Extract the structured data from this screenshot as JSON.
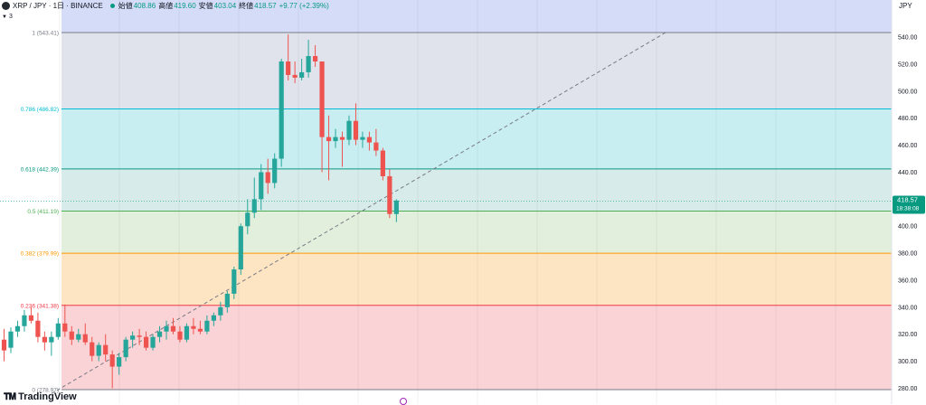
{
  "header": {
    "symbol": "XRP / JPY · 1日 · BINANCE",
    "open_label": "始値",
    "open": "408.86",
    "high_label": "高値",
    "high": "419.60",
    "low_label": "安値",
    "low": "403.04",
    "close_label": "終値",
    "close": "418.57",
    "change": "+9.77 (+2.39%)"
  },
  "indicator_toggle": {
    "count": "3"
  },
  "price_scale": {
    "currency": "JPY"
  },
  "last_price": {
    "price": "418.57",
    "countdown": "18:38:08"
  },
  "logo_text": "TradingView",
  "colors": {
    "up": "#26a69a",
    "down": "#ef5350",
    "label_bg": "#089981"
  },
  "chart_data": {
    "type": "candlestick",
    "y_axis": {
      "ticks": [
        280,
        300,
        320,
        340,
        360,
        380,
        400,
        420,
        440,
        460,
        480,
        500,
        520,
        540
      ],
      "range": [
        276,
        560
      ]
    },
    "fibonacci": [
      {
        "label": "1 (543.41)",
        "level": 1,
        "price": 543.41,
        "line": "#787b86",
        "fill": "#e0e3eb"
      },
      {
        "label": "0.786 (486.82)",
        "level": 0.786,
        "price": 486.82,
        "line": "#00bcd4",
        "fill": "#c8eef2"
      },
      {
        "label": "0.618 (442.39)",
        "level": 0.618,
        "price": 442.39,
        "line": "#089981",
        "fill": "#d7ebea"
      },
      {
        "label": "0.5 (411.19)",
        "level": 0.5,
        "price": 411.19,
        "line": "#4caf50",
        "fill": "#e1efdc"
      },
      {
        "label": "0.382 (379.99)",
        "level": 0.382,
        "price": 379.99,
        "line": "#ff9800",
        "fill": "#fde4c3"
      },
      {
        "label": "0.236 (341.38)",
        "level": 0.236,
        "price": 341.38,
        "line": "#f23645",
        "fill": "#f9d3d6"
      },
      {
        "label": "0 (278.97)",
        "level": 0,
        "price": 278.97,
        "line": "#787b86",
        "fill": null
      }
    ],
    "top_zone_fill": "#d4dcf8",
    "trend_line": {
      "from_bar": 7,
      "from_price": 276,
      "to_bar": 98,
      "to_price": 544
    },
    "candles": [
      {
        "o": 316,
        "h": 324,
        "l": 300,
        "c": 308
      },
      {
        "o": 310,
        "h": 325,
        "l": 306,
        "c": 322
      },
      {
        "o": 322,
        "h": 330,
        "l": 318,
        "c": 326
      },
      {
        "o": 326,
        "h": 338,
        "l": 322,
        "c": 334
      },
      {
        "o": 334,
        "h": 340,
        "l": 328,
        "c": 330
      },
      {
        "o": 330,
        "h": 336,
        "l": 314,
        "c": 318
      },
      {
        "o": 318,
        "h": 322,
        "l": 308,
        "c": 314
      },
      {
        "o": 314,
        "h": 322,
        "l": 304,
        "c": 318
      },
      {
        "o": 318,
        "h": 332,
        "l": 316,
        "c": 328
      },
      {
        "o": 328,
        "h": 342,
        "l": 318,
        "c": 322
      },
      {
        "o": 322,
        "h": 326,
        "l": 312,
        "c": 316
      },
      {
        "o": 316,
        "h": 324,
        "l": 314,
        "c": 320
      },
      {
        "o": 320,
        "h": 328,
        "l": 312,
        "c": 314
      },
      {
        "o": 314,
        "h": 318,
        "l": 300,
        "c": 304
      },
      {
        "o": 304,
        "h": 314,
        "l": 300,
        "c": 312
      },
      {
        "o": 312,
        "h": 320,
        "l": 300,
        "c": 305
      },
      {
        "o": 305,
        "h": 308,
        "l": 280,
        "c": 296
      },
      {
        "o": 296,
        "h": 306,
        "l": 290,
        "c": 303
      },
      {
        "o": 303,
        "h": 318,
        "l": 300,
        "c": 316
      },
      {
        "o": 316,
        "h": 322,
        "l": 310,
        "c": 319
      },
      {
        "o": 319,
        "h": 324,
        "l": 312,
        "c": 318
      },
      {
        "o": 318,
        "h": 322,
        "l": 308,
        "c": 310
      },
      {
        "o": 310,
        "h": 320,
        "l": 308,
        "c": 318
      },
      {
        "o": 318,
        "h": 326,
        "l": 314,
        "c": 322
      },
      {
        "o": 322,
        "h": 330,
        "l": 316,
        "c": 326
      },
      {
        "o": 326,
        "h": 332,
        "l": 320,
        "c": 322
      },
      {
        "o": 322,
        "h": 326,
        "l": 314,
        "c": 316
      },
      {
        "o": 316,
        "h": 328,
        "l": 314,
        "c": 326
      },
      {
        "o": 326,
        "h": 332,
        "l": 320,
        "c": 324
      },
      {
        "o": 324,
        "h": 330,
        "l": 320,
        "c": 322
      },
      {
        "o": 322,
        "h": 334,
        "l": 320,
        "c": 330
      },
      {
        "o": 330,
        "h": 336,
        "l": 326,
        "c": 334
      },
      {
        "o": 334,
        "h": 344,
        "l": 330,
        "c": 340
      },
      {
        "o": 340,
        "h": 352,
        "l": 336,
        "c": 350
      },
      {
        "o": 350,
        "h": 370,
        "l": 346,
        "c": 368
      },
      {
        "o": 368,
        "h": 402,
        "l": 364,
        "c": 400
      },
      {
        "o": 400,
        "h": 420,
        "l": 394,
        "c": 410
      },
      {
        "o": 410,
        "h": 436,
        "l": 406,
        "c": 420
      },
      {
        "o": 420,
        "h": 446,
        "l": 412,
        "c": 440
      },
      {
        "o": 440,
        "h": 450,
        "l": 424,
        "c": 432
      },
      {
        "o": 432,
        "h": 454,
        "l": 428,
        "c": 450
      },
      {
        "o": 450,
        "h": 524,
        "l": 444,
        "c": 522
      },
      {
        "o": 522,
        "h": 542,
        "l": 508,
        "c": 512
      },
      {
        "o": 512,
        "h": 522,
        "l": 506,
        "c": 510
      },
      {
        "o": 510,
        "h": 524,
        "l": 508,
        "c": 514
      },
      {
        "o": 514,
        "h": 538,
        "l": 510,
        "c": 526
      },
      {
        "o": 526,
        "h": 534,
        "l": 518,
        "c": 522
      },
      {
        "o": 522,
        "h": 522,
        "l": 440,
        "c": 466
      },
      {
        "o": 466,
        "h": 482,
        "l": 434,
        "c": 463
      },
      {
        "o": 463,
        "h": 472,
        "l": 458,
        "c": 466
      },
      {
        "o": 466,
        "h": 470,
        "l": 444,
        "c": 464
      },
      {
        "o": 464,
        "h": 482,
        "l": 460,
        "c": 478
      },
      {
        "o": 478,
        "h": 491,
        "l": 460,
        "c": 464
      },
      {
        "o": 464,
        "h": 470,
        "l": 458,
        "c": 466
      },
      {
        "o": 466,
        "h": 470,
        "l": 456,
        "c": 462
      },
      {
        "o": 462,
        "h": 472,
        "l": 452,
        "c": 456
      },
      {
        "o": 456,
        "h": 458,
        "l": 434,
        "c": 437
      },
      {
        "o": 437,
        "h": 442,
        "l": 406,
        "c": 409
      },
      {
        "o": 409,
        "h": 420,
        "l": 403,
        "c": 419
      }
    ]
  }
}
